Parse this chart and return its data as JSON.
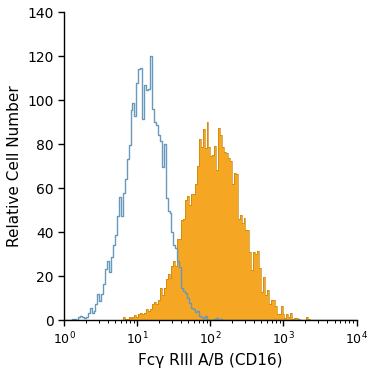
{
  "title": "",
  "xlabel": "Fcγ RIII A/B (CD16)",
  "ylabel": "Relative Cell Number",
  "xlim": [
    1,
    10000
  ],
  "ylim": [
    0,
    140
  ],
  "yticks": [
    0,
    20,
    40,
    60,
    80,
    100,
    120,
    140
  ],
  "background_color": "#ffffff",
  "blue_color": "#6699bb",
  "orange_color": "#f5a623",
  "orange_outline_color": "#c47f00",
  "blue_peak_log_x": 1.1,
  "blue_log_std": 0.28,
  "blue_max": 120,
  "orange_peak_log_x": 2.05,
  "orange_log_std": 0.38,
  "orange_max": 90,
  "n_bins": 150
}
